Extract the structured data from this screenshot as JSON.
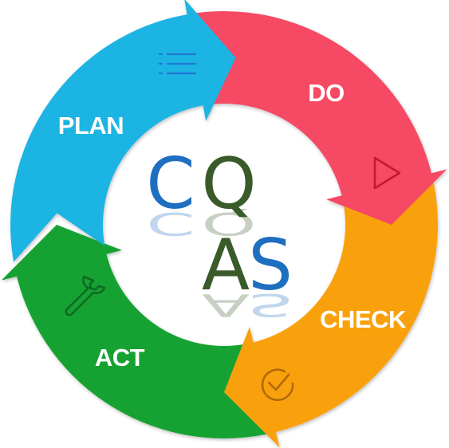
{
  "diagram": {
    "stages": [
      {
        "id": "plan",
        "label": "PLAN",
        "icon": "list-icon",
        "color": "#1ab4e3",
        "icon_color": "#1f78d4"
      },
      {
        "id": "do",
        "label": "DO",
        "icon": "play-icon",
        "color": "#f64863",
        "icon_color": "#c41a2c"
      },
      {
        "id": "check",
        "label": "CHECK",
        "icon": "checkmark-circle-icon",
        "color": "#f9a10d",
        "icon_color": "#b06a06"
      },
      {
        "id": "act",
        "label": "ACT",
        "icon": "wrench-icon",
        "color": "#17a232",
        "icon_color": "#0d6b22"
      }
    ],
    "center": {
      "letters": [
        {
          "char": "C",
          "color": "#1f6fc1"
        },
        {
          "char": "Q",
          "color": "#3a5a2a"
        },
        {
          "char": "A",
          "color": "#3a5a2a"
        },
        {
          "char": "S",
          "color": "#1f6fc1"
        }
      ]
    }
  }
}
